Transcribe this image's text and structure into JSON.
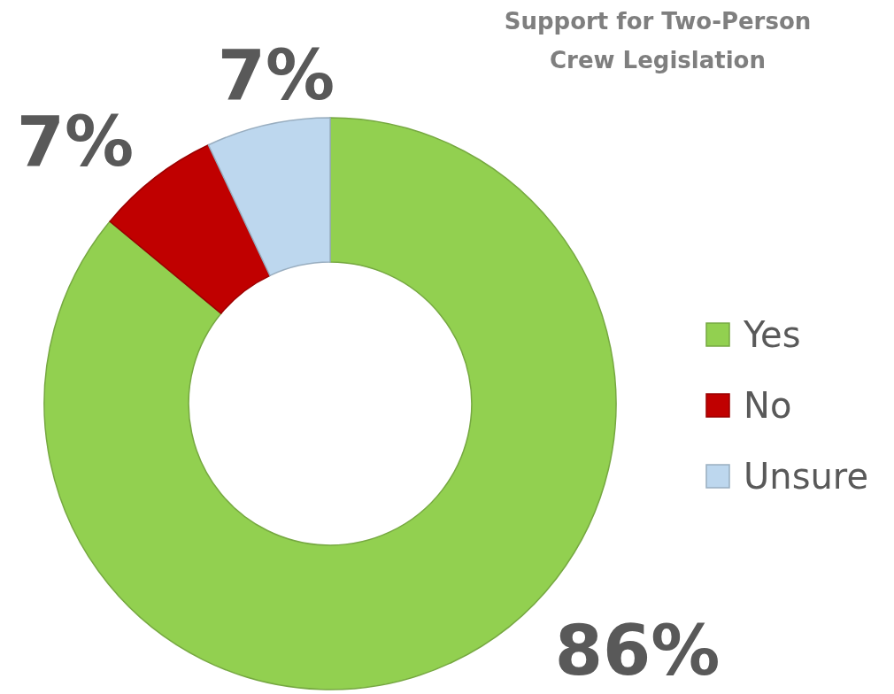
{
  "chart_data": {
    "type": "donut",
    "title": "Support for Two-Person Crew Legislation",
    "categories": [
      "Yes",
      "No",
      "Unsure"
    ],
    "values": [
      86,
      7,
      7
    ],
    "colors": [
      "#92d050",
      "#c00000",
      "#bdd7ee"
    ],
    "value_labels": [
      "86%",
      "7%",
      "7%"
    ],
    "legend": "right"
  }
}
